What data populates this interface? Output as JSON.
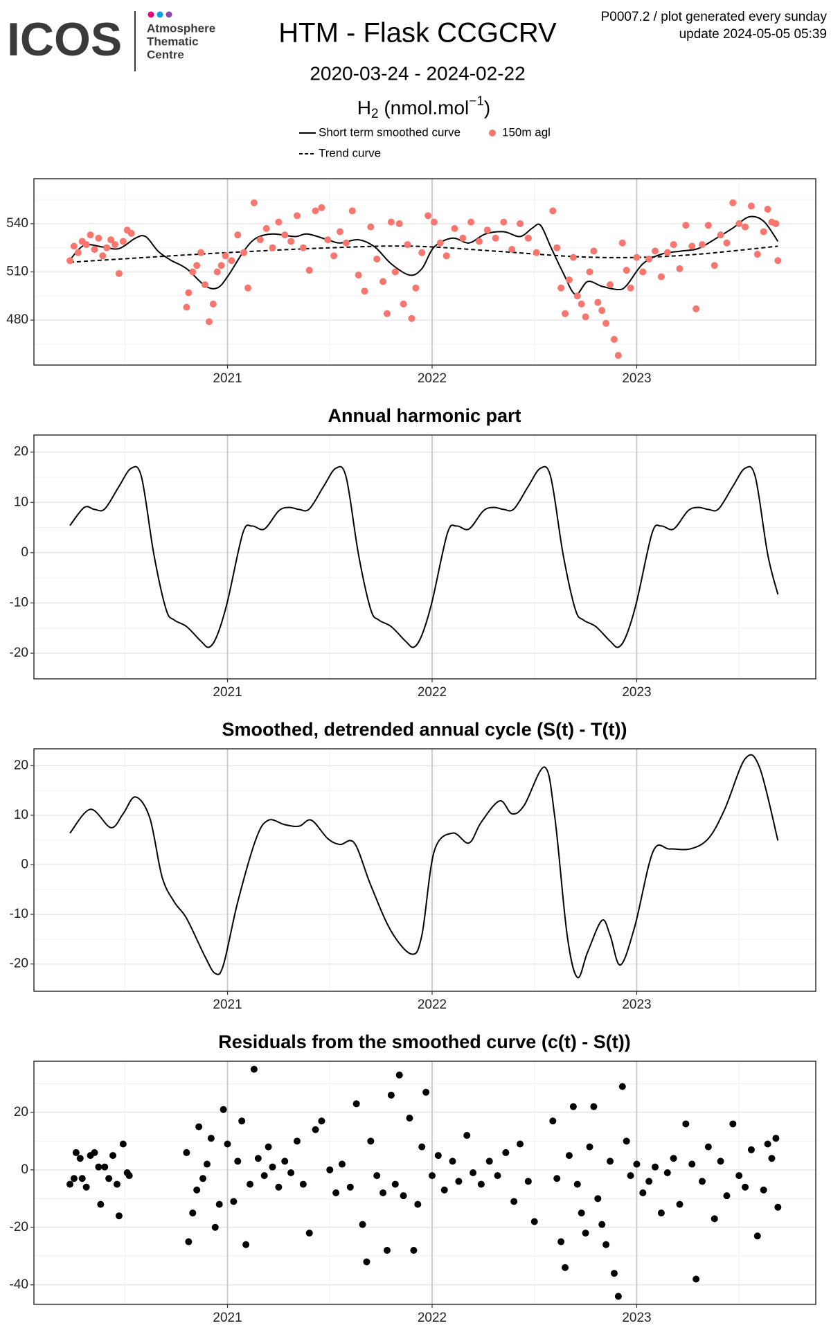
{
  "header": {
    "logo": "ICOS",
    "logo_lines": [
      "Atmosphere",
      "Thematic",
      "Centre"
    ],
    "title": "HTM - Flask CCGCRV",
    "subtitle": "2020-03-24 - 2024-02-22",
    "ylabel": {
      "base": "H",
      "sub": "2",
      "unit": " (nmol.mol",
      "sup": "−1",
      "end": ")"
    },
    "note": [
      "P0007.2 / plot generated every sunday",
      "update  2024-05-05 05:39"
    ]
  },
  "chart_data": [
    {
      "type": "line",
      "legend": "top",
      "xlim": [
        2020.054,
        2023.875
      ],
      "xticks": [
        2021,
        2022,
        2023
      ],
      "minor_xticks": [
        2020.5,
        2021.5,
        2022.5,
        2023.5
      ],
      "ylim": [
        452,
        568
      ],
      "yticks": [
        480,
        510,
        540
      ],
      "minor_yticks": [
        465,
        495,
        525,
        555
      ],
      "grid": true,
      "series": [
        {
          "name": "Short term smoothed curve",
          "color": "#000000",
          "style": "solid",
          "x": [
            2020.23,
            2020.3,
            2020.39,
            2020.47,
            2020.55,
            2020.6,
            2020.66,
            2020.72,
            2020.8,
            2020.89,
            2020.95,
            2021.0,
            2021.08,
            2021.14,
            2021.22,
            2021.33,
            2021.39,
            2021.49,
            2021.55,
            2021.64,
            2021.72,
            2021.8,
            2021.89,
            2021.95,
            2022.01,
            2022.1,
            2022.18,
            2022.26,
            2022.35,
            2022.43,
            2022.49,
            2022.53,
            2022.58,
            2022.64,
            2022.7,
            2022.76,
            2022.83,
            2022.91,
            2022.95,
            2023.03,
            2023.12,
            2023.22,
            2023.3,
            2023.39,
            2023.47,
            2023.55,
            2023.62,
            2023.69
          ],
          "values": [
            517.5,
            526.6,
            525.5,
            524.5,
            531,
            532,
            523,
            517.5,
            512,
            501.4,
            500,
            507,
            523,
            531,
            533.6,
            532,
            533.6,
            530,
            528,
            530,
            525.5,
            515,
            508,
            512,
            525.5,
            531,
            528,
            533.6,
            535,
            532,
            537.3,
            539,
            525.5,
            509.5,
            496,
            504,
            501,
            499,
            501.5,
            515,
            521,
            523,
            524.5,
            531,
            537.3,
            544.3,
            541.6,
            529
          ]
        },
        {
          "name": "Trend curve",
          "color": "#000000",
          "style": "dashed",
          "x": [
            2020.23,
            2020.6,
            2021.0,
            2021.5,
            2021.9,
            2022.3,
            2022.7,
            2023.0,
            2023.3,
            2023.69
          ],
          "values": [
            516,
            519,
            522,
            525,
            526,
            523,
            519.5,
            519,
            521,
            526
          ]
        },
        {
          "name": "150m agl",
          "color": "#f8766d",
          "style": "points",
          "x": [
            2020.23,
            2020.25,
            2020.27,
            2020.29,
            2020.31,
            2020.33,
            2020.35,
            2020.37,
            2020.39,
            2020.41,
            2020.43,
            2020.45,
            2020.47,
            2020.49,
            2020.51,
            2020.53,
            2020.8,
            2020.81,
            2020.83,
            2020.85,
            2020.87,
            2020.89,
            2020.91,
            2020.93,
            2020.95,
            2020.97,
            2020.99,
            2021.02,
            2021.05,
            2021.08,
            2021.1,
            2021.13,
            2021.16,
            2021.19,
            2021.22,
            2021.25,
            2021.28,
            2021.31,
            2021.34,
            2021.37,
            2021.4,
            2021.43,
            2021.46,
            2021.49,
            2021.52,
            2021.55,
            2021.58,
            2021.61,
            2021.64,
            2021.67,
            2021.7,
            2021.73,
            2021.76,
            2021.78,
            2021.8,
            2021.82,
            2021.84,
            2021.86,
            2021.88,
            2021.9,
            2021.92,
            2021.95,
            2021.98,
            2022.01,
            2022.04,
            2022.07,
            2022.11,
            2022.15,
            2022.19,
            2022.23,
            2022.27,
            2022.31,
            2022.35,
            2022.39,
            2022.43,
            2022.47,
            2022.51,
            2022.59,
            2022.61,
            2022.63,
            2022.65,
            2022.67,
            2022.69,
            2022.71,
            2022.73,
            2022.75,
            2022.77,
            2022.79,
            2022.81,
            2022.83,
            2022.85,
            2022.87,
            2022.89,
            2022.91,
            2022.93,
            2022.95,
            2022.97,
            2023.0,
            2023.03,
            2023.06,
            2023.09,
            2023.12,
            2023.15,
            2023.18,
            2023.21,
            2023.24,
            2023.27,
            2023.29,
            2023.32,
            2023.35,
            2023.38,
            2023.41,
            2023.44,
            2023.47,
            2023.5,
            2023.53,
            2023.56,
            2023.59,
            2023.62,
            2023.64,
            2023.66,
            2023.68,
            2023.69
          ],
          "values": [
            517,
            526,
            522,
            529,
            527,
            533,
            524,
            531,
            520,
            525,
            530,
            527,
            509,
            529,
            536,
            534,
            488,
            497,
            510,
            514,
            522,
            502,
            479,
            490,
            510,
            514,
            520,
            517,
            533,
            522,
            500,
            553,
            530,
            537,
            525,
            541,
            533,
            529,
            545,
            525,
            511,
            548,
            550,
            530,
            520,
            535,
            528,
            548,
            508,
            498,
            538,
            518,
            504,
            484,
            541,
            510,
            540,
            490,
            527,
            481,
            500,
            522,
            545,
            541,
            528,
            520,
            537,
            531,
            541,
            529,
            536,
            531,
            541,
            524,
            540,
            531,
            522,
            548,
            525,
            500,
            484,
            505,
            519,
            495,
            490,
            482,
            510,
            523,
            491,
            486,
            478,
            502,
            468,
            458,
            528,
            511,
            500,
            519,
            510,
            518,
            523,
            507,
            522,
            527,
            512,
            539,
            526,
            487,
            527,
            539,
            514,
            533,
            528,
            553,
            540,
            538,
            551,
            521,
            535,
            549,
            541,
            540,
            517
          ]
        }
      ]
    },
    {
      "type": "line",
      "title": "Annual harmonic part",
      "xlim": [
        2020.054,
        2023.875
      ],
      "xticks": [
        2021,
        2022,
        2023
      ],
      "minor_xticks": [
        2020.5,
        2021.5,
        2022.5,
        2023.5
      ],
      "ylim": [
        -25.1,
        23.4
      ],
      "yticks": [
        -20,
        -10,
        0,
        10,
        20
      ],
      "minor_yticks": [
        -15,
        -5,
        5,
        15
      ],
      "grid": true,
      "series": [
        {
          "color": "#000000",
          "style": "solid",
          "x": [
            2020.23,
            2020.3,
            2020.35,
            2020.4,
            2020.47,
            2020.53,
            2020.58,
            2020.64,
            2020.7,
            2020.74,
            2020.8,
            2020.87,
            2020.91,
            2020.95,
            2021.0,
            2021.075,
            2021.12,
            2021.18,
            2021.25,
            2021.3,
            2021.35,
            2021.4,
            2021.47,
            2021.53,
            2021.58,
            2021.64,
            2021.7,
            2021.74,
            2021.8,
            2021.87,
            2021.91,
            2021.95,
            2022.0,
            2022.075,
            2022.12,
            2022.18,
            2022.25,
            2022.3,
            2022.35,
            2022.4,
            2022.47,
            2022.53,
            2022.58,
            2022.64,
            2022.7,
            2022.74,
            2022.8,
            2022.87,
            2022.91,
            2022.95,
            2023.0,
            2023.075,
            2023.12,
            2023.18,
            2023.25,
            2023.3,
            2023.35,
            2023.4,
            2023.47,
            2023.53,
            2023.58,
            2023.64,
            2023.69
          ],
          "values": [
            5.4,
            9.0,
            8.6,
            8.7,
            13.2,
            16.8,
            15.0,
            -0.3,
            -11.3,
            -13.4,
            -14.7,
            -17.6,
            -18.8,
            -16.4,
            -9.7,
            3.9,
            5.3,
            4.7,
            8.3,
            9.0,
            8.6,
            8.7,
            13.2,
            16.8,
            15.0,
            -0.3,
            -11.3,
            -13.4,
            -14.7,
            -17.6,
            -18.8,
            -16.4,
            -9.7,
            3.9,
            5.3,
            4.7,
            8.3,
            9.0,
            8.6,
            8.7,
            13.2,
            16.8,
            15.0,
            -0.3,
            -11.3,
            -13.4,
            -14.7,
            -17.6,
            -18.8,
            -16.4,
            -9.7,
            3.9,
            5.3,
            4.7,
            8.3,
            9.0,
            8.6,
            8.7,
            13.2,
            16.8,
            15.0,
            -0.3,
            -8.3
          ]
        }
      ]
    },
    {
      "type": "line",
      "title": "Smoothed, detrended annual cycle (S(t) - T(t))",
      "xlim": [
        2020.054,
        2023.875
      ],
      "xticks": [
        2021,
        2022,
        2023
      ],
      "minor_xticks": [
        2020.5,
        2021.5,
        2022.5,
        2023.5
      ],
      "ylim": [
        -25.5,
        23.4
      ],
      "yticks": [
        -20,
        -10,
        0,
        10,
        20
      ],
      "minor_yticks": [
        -15,
        -5,
        5,
        15
      ],
      "grid": true,
      "series": [
        {
          "color": "#000000",
          "style": "solid",
          "x": [
            2020.23,
            2020.33,
            2020.43,
            2020.49,
            2020.55,
            2020.62,
            2020.68,
            2020.74,
            2020.8,
            2020.89,
            2020.94,
            2020.98,
            2021.05,
            2021.14,
            2021.2,
            2021.28,
            2021.35,
            2021.41,
            2021.49,
            2021.55,
            2021.62,
            2021.7,
            2021.8,
            2021.9,
            2021.95,
            2022.01,
            2022.1,
            2022.18,
            2022.24,
            2022.33,
            2022.39,
            2022.45,
            2022.55,
            2022.6,
            2022.66,
            2022.71,
            2022.76,
            2022.83,
            2022.87,
            2022.92,
            2022.99,
            2023.08,
            2023.16,
            2023.26,
            2023.35,
            2023.43,
            2023.53,
            2023.6,
            2023.69
          ],
          "values": [
            6.4,
            11.2,
            7.5,
            10.3,
            13.7,
            9.5,
            -2.4,
            -7.5,
            -10.8,
            -18.5,
            -21.9,
            -20.2,
            -7.5,
            5.3,
            9.0,
            8.1,
            7.8,
            9.0,
            5.3,
            4.1,
            4.4,
            -4.1,
            -13.4,
            -18.0,
            -14.2,
            2.7,
            6.4,
            4.4,
            8.6,
            12.9,
            10.3,
            12.0,
            19.7,
            9.5,
            -14.2,
            -22.7,
            -17.6,
            -11.2,
            -14.2,
            -20.2,
            -12.5,
            2.7,
            3.2,
            3.2,
            5.3,
            11.2,
            21.4,
            19.7,
            4.9
          ]
        }
      ]
    },
    {
      "type": "scatter",
      "title": "Residuals from the smoothed curve (c(t) - S(t))",
      "xlim": [
        2020.054,
        2023.875
      ],
      "xticks": [
        2021,
        2022,
        2023
      ],
      "minor_xticks": [
        2020.5,
        2021.5,
        2022.5,
        2023.5
      ],
      "ylim": [
        -46.8,
        37.8
      ],
      "yticks": [
        -40,
        -20,
        0,
        20
      ],
      "minor_yticks": [
        -30,
        -10,
        10,
        30
      ],
      "grid": true,
      "series": [
        {
          "color": "#000000",
          "style": "points",
          "x": [
            2020.23,
            2020.25,
            2020.26,
            2020.28,
            2020.29,
            2020.31,
            2020.33,
            2020.35,
            2020.37,
            2020.38,
            2020.4,
            2020.42,
            2020.44,
            2020.46,
            2020.47,
            2020.49,
            2020.51,
            2020.52,
            2020.8,
            2020.81,
            2020.83,
            2020.85,
            2020.86,
            2020.88,
            2020.9,
            2020.92,
            2020.94,
            2020.96,
            2020.98,
            2021.0,
            2021.03,
            2021.05,
            2021.07,
            2021.09,
            2021.11,
            2021.13,
            2021.15,
            2021.18,
            2021.2,
            2021.22,
            2021.25,
            2021.28,
            2021.31,
            2021.34,
            2021.37,
            2021.4,
            2021.43,
            2021.46,
            2021.5,
            2021.53,
            2021.56,
            2021.6,
            2021.63,
            2021.66,
            2021.68,
            2021.7,
            2021.73,
            2021.76,
            2021.78,
            2021.8,
            2021.82,
            2021.84,
            2021.86,
            2021.89,
            2021.91,
            2021.93,
            2021.95,
            2021.97,
            2022.0,
            2022.03,
            2022.06,
            2022.1,
            2022.13,
            2022.17,
            2022.2,
            2022.24,
            2022.28,
            2022.32,
            2022.36,
            2022.4,
            2022.43,
            2022.47,
            2022.5,
            2022.59,
            2022.61,
            2022.63,
            2022.65,
            2022.67,
            2022.69,
            2022.71,
            2022.73,
            2022.75,
            2022.77,
            2022.79,
            2022.81,
            2022.83,
            2022.85,
            2022.87,
            2022.89,
            2022.91,
            2022.93,
            2022.95,
            2022.97,
            2023.0,
            2023.03,
            2023.06,
            2023.09,
            2023.12,
            2023.15,
            2023.18,
            2023.21,
            2023.24,
            2023.27,
            2023.29,
            2023.32,
            2023.35,
            2023.38,
            2023.41,
            2023.44,
            2023.47,
            2023.5,
            2023.53,
            2023.56,
            2023.59,
            2023.62,
            2023.64,
            2023.66,
            2023.68,
            2023.69
          ],
          "values": [
            -5,
            -3,
            6,
            4,
            -3,
            -6,
            5,
            6,
            1,
            -12,
            1,
            -3,
            5,
            -5,
            -16,
            9,
            -1,
            -2,
            6,
            -25,
            -15,
            -7,
            15,
            -3,
            2,
            11,
            -20,
            -12,
            21,
            9,
            -11,
            3,
            17,
            -26,
            -5,
            35,
            4,
            -2,
            8,
            1,
            -6,
            3,
            -1,
            10,
            -5,
            -22,
            14,
            17,
            0,
            -8,
            2,
            -6,
            23,
            -19,
            -32,
            10,
            -2,
            -8,
            -28,
            26,
            -5,
            33,
            -9,
            18,
            -28,
            -12,
            8,
            27,
            -2,
            5,
            -7,
            3,
            -4,
            12,
            -1,
            -5,
            3,
            -2,
            6,
            -11,
            9,
            -4,
            -18,
            17,
            -3,
            -25,
            -34,
            5,
            22,
            -5,
            -15,
            -22,
            8,
            22,
            -10,
            -19,
            -26,
            3,
            -36,
            -44,
            29,
            10,
            -2,
            2,
            -8,
            -4,
            1,
            -15,
            -1,
            4,
            -12,
            16,
            2,
            -38,
            -4,
            8,
            -17,
            3,
            -9,
            16,
            -2,
            -6,
            7,
            -23,
            -7,
            9,
            4,
            11,
            -13
          ]
        }
      ]
    }
  ]
}
